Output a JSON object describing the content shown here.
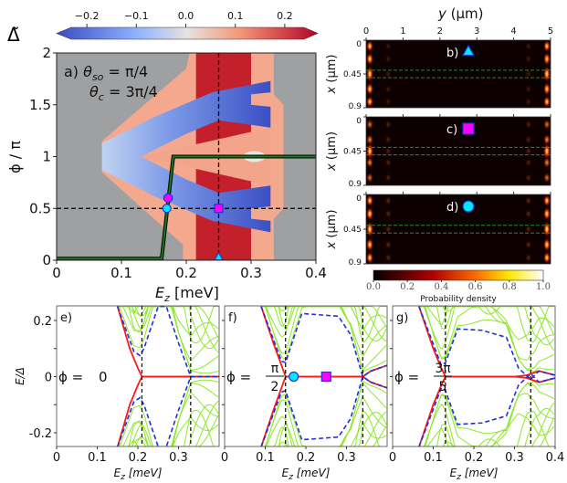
{
  "chart_data": [
    {
      "panel": "a",
      "type": "heatmap",
      "colorbar": {
        "label": "Δ̃",
        "range": [
          -0.25,
          0.25
        ],
        "tick_values": [
          -0.2,
          -0.1,
          0.0,
          0.1,
          0.2
        ],
        "tick_labels": [
          "−0.2",
          "−0.1",
          "0.0",
          "0.1",
          "0.2"
        ]
      },
      "annotation": {
        "prefix": "a) ",
        "sym1": "θ",
        "sub1": "so",
        "val1": " = π/4",
        "sym2": "θ",
        "sub2": "c",
        "val2": " = 3π/4"
      },
      "xlabel": {
        "main": "E",
        "sub": "z",
        "rest": " [meV]"
      },
      "ylabel": "ϕ / π",
      "xlim": [
        0,
        0.4
      ],
      "ylim": [
        0,
        2
      ],
      "xticks": [
        0,
        0.1,
        0.2,
        0.3,
        0.4
      ],
      "xtick_labels": [
        "0",
        "0.1",
        "0.2",
        "0.3",
        "0.4"
      ],
      "yticks": [
        0,
        0.5,
        1,
        1.5,
        2
      ],
      "ytick_labels": [
        "0",
        "0.5",
        "1",
        "1.5",
        "2"
      ],
      "regions": {
        "background_color": "#9fa0a2",
        "salmon": [
          [
            0.195,
            0
          ],
          [
            0.335,
            0
          ],
          [
            0.335,
            0.4
          ],
          [
            0.35,
            0.5
          ],
          [
            0.35,
            1.5
          ],
          [
            0.335,
            1.6
          ],
          [
            0.335,
            2
          ],
          [
            0.205,
            2
          ],
          [
            0.2,
            1.85
          ],
          [
            0.07,
            1.15
          ],
          [
            0.07,
            0.85
          ],
          [
            0.195,
            0.15
          ]
        ],
        "dark_red": [
          [
            0.215,
            0
          ],
          [
            0.3,
            0
          ],
          [
            0.3,
            2
          ],
          [
            0.215,
            2
          ]
        ],
        "blue_upper": [
          [
            0.07,
            1.0
          ],
          [
            0.07,
            1.13
          ],
          [
            0.15,
            1.38
          ],
          [
            0.24,
            1.62
          ],
          [
            0.33,
            1.73
          ],
          [
            0.33,
            1.62
          ],
          [
            0.3,
            1.6
          ],
          [
            0.3,
            1.5
          ],
          [
            0.33,
            1.48
          ],
          [
            0.33,
            1.28
          ],
          [
            0.25,
            1.35
          ],
          [
            0.2,
            1.22
          ],
          [
            0.13,
            1.0
          ]
        ],
        "white_spot": [
          0.305,
          1.0
        ]
      },
      "phase_boundary": [
        [
          0,
          0.015
        ],
        [
          0.162,
          0.015
        ],
        [
          0.18,
          1.0
        ],
        [
          0.4,
          1.0
        ]
      ],
      "dashed_lines": {
        "x": 0.25,
        "y": 0.5
      },
      "markers": [
        {
          "shape": "circle",
          "x": 0.17,
          "y": 0.5,
          "color": "#00e8ff"
        },
        {
          "shape": "cross",
          "x": 0.172,
          "y": 0.6,
          "color": "#ff00ff"
        },
        {
          "shape": "square",
          "x": 0.25,
          "y": 0.5,
          "color": "#ff00ff"
        },
        {
          "shape": "triangle",
          "x": 0.25,
          "y": 0.0,
          "color": "#00e8ff"
        }
      ]
    },
    {
      "panel": "b-d",
      "type": "heatmap",
      "top_label": {
        "main": "y",
        "rest": " (μm)"
      },
      "ylabel": {
        "main": "x",
        "rest": " (μm)"
      },
      "xlim": [
        0,
        5
      ],
      "xticks": [
        0,
        1,
        2,
        3,
        4,
        5
      ],
      "xtick_labels": [
        "0",
        "1",
        "2",
        "3",
        "4",
        "5"
      ],
      "ylim": [
        0,
        0.9
      ],
      "yticks": [
        0,
        0.45,
        0.9
      ],
      "ytick_labels": [
        "0",
        "0.45",
        "0.9"
      ],
      "wire_band": [
        0.4,
        0.5
      ],
      "colorbar": {
        "label": "Probability density",
        "range": [
          0,
          1
        ],
        "tick_labels": [
          "0.0",
          "0.2",
          "0.4",
          "0.6",
          "0.8",
          "1.0"
        ]
      },
      "panels": [
        {
          "label": "b)",
          "marker": "triangle",
          "marker_color": "#00e8ff",
          "blobs_x": [
            0.08,
            0.25,
            0.45,
            0.65,
            0.82
          ],
          "intensity": [
            0.6,
            0.6,
            1.0,
            0.6,
            0.6
          ],
          "inner": 0.15
        },
        {
          "label": "c)",
          "marker": "square",
          "marker_color": "#ff00ff",
          "blobs_x": [
            0.1,
            0.3,
            0.45,
            0.6,
            0.8
          ],
          "intensity": [
            0.25,
            0.35,
            1.0,
            0.35,
            0.25
          ],
          "inner": 0.2
        },
        {
          "label": "d)",
          "marker": "circle",
          "marker_color": "#00e8ff",
          "blobs_x": [
            0.08,
            0.25,
            0.45,
            0.65,
            0.82
          ],
          "intensity": [
            0.6,
            0.65,
            1.0,
            0.65,
            0.6
          ],
          "inner": 0.22
        }
      ]
    },
    {
      "panel": "e",
      "type": "line",
      "label": "e)",
      "ylabel": "E/Δ",
      "xlabel": {
        "main": "E",
        "sub": "z",
        "rest": " [meV]"
      },
      "xlim": [
        0,
        0.4
      ],
      "ylim": [
        -0.25,
        0.25
      ],
      "xtick_labels": [
        "0",
        "0.1",
        "0.2",
        "0.3"
      ],
      "xticks": [
        0,
        0.1,
        0.2,
        0.3
      ],
      "yticks": [
        -0.2,
        0,
        0.2
      ],
      "ytick_labels": [
        "-0.2",
        "0",
        "0.2"
      ],
      "phi": {
        "lhs": "ϕ = ",
        "num": "0",
        "den": ""
      },
      "vlines": [
        0.21,
        0.33
      ],
      "red": [
        [
          0.15,
          0.25
        ],
        [
          0.18,
          0.1
        ],
        [
          0.2,
          0.03
        ],
        [
          0.21,
          0
        ],
        [
          0.4,
          0
        ]
      ],
      "blue": [
        [
          0.15,
          0.26
        ],
        [
          0.19,
          0.09
        ],
        [
          0.205,
          0.075
        ],
        [
          0.215,
          0.1
        ],
        [
          0.25,
          0.27
        ],
        [
          0.27,
          0.27
        ],
        [
          0.3,
          0.12
        ],
        [
          0.33,
          0
        ],
        [
          0.4,
          0
        ]
      ],
      "markers": []
    },
    {
      "panel": "f",
      "type": "line",
      "label": "f)",
      "xlabel": {
        "main": "E",
        "sub": "z",
        "rest": " [meV]"
      },
      "xlim": [
        0,
        0.4
      ],
      "ylim": [
        -0.25,
        0.25
      ],
      "xtick_labels": [
        "0",
        "0.1",
        "0.2",
        "0.3"
      ],
      "xticks": [
        0,
        0.1,
        0.2,
        0.3
      ],
      "phi": {
        "lhs": "ϕ = ",
        "num": "π",
        "den": "2"
      },
      "vlines": [
        0.15,
        0.34
      ],
      "red": [
        [
          0.09,
          0.25
        ],
        [
          0.12,
          0.12
        ],
        [
          0.14,
          0.04
        ],
        [
          0.15,
          0
        ],
        [
          0.34,
          0
        ],
        [
          0.36,
          0.02
        ],
        [
          0.4,
          0.04
        ]
      ],
      "blue": [
        [
          0.09,
          0.26
        ],
        [
          0.14,
          0.055
        ],
        [
          0.15,
          0.05
        ],
        [
          0.19,
          0.225
        ],
        [
          0.28,
          0.215
        ],
        [
          0.31,
          0.15
        ],
        [
          0.34,
          0
        ],
        [
          0.36,
          -0.02
        ],
        [
          0.4,
          -0.04
        ]
      ],
      "markers": [
        {
          "shape": "circle",
          "x": 0.17,
          "y": 0,
          "color": "#00e8ff"
        },
        {
          "shape": "square",
          "x": 0.25,
          "y": 0,
          "color": "#ff00ff"
        }
      ]
    },
    {
      "panel": "g",
      "type": "line",
      "label": "g)",
      "xlabel": {
        "main": "E",
        "sub": "z",
        "rest": " [meV]"
      },
      "xlim": [
        0,
        0.4
      ],
      "ylim": [
        -0.25,
        0.25
      ],
      "xtick_labels": [
        "0",
        "0.1",
        "0.2",
        "0.3",
        "0.4"
      ],
      "xticks": [
        0,
        0.1,
        0.2,
        0.3,
        0.4
      ],
      "phi": {
        "lhs": "ϕ = ",
        "num": "3π",
        "den": "5"
      },
      "vlines": [
        0.13,
        0.34
      ],
      "red": [
        [
          0.065,
          0.25
        ],
        [
          0.1,
          0.1
        ],
        [
          0.12,
          0.03
        ],
        [
          0.13,
          0
        ],
        [
          0.3,
          0
        ],
        [
          0.33,
          -0.005
        ],
        [
          0.36,
          -0.02
        ],
        [
          0.4,
          -0.005
        ]
      ],
      "blue": [
        [
          0.065,
          0.26
        ],
        [
          0.12,
          0.04
        ],
        [
          0.13,
          0.05
        ],
        [
          0.16,
          0.17
        ],
        [
          0.22,
          0.165
        ],
        [
          0.28,
          0.14
        ],
        [
          0.31,
          0.03
        ],
        [
          0.34,
          -0.01
        ],
        [
          0.36,
          0.02
        ],
        [
          0.4,
          0.005
        ]
      ],
      "markers": []
    }
  ],
  "bulk_band_offsets": [
    0.03,
    0.06,
    0.09,
    0.12,
    0.16,
    0.2,
    0.25,
    0.3
  ],
  "colors": {
    "green": "#8ee82a",
    "red": "#ff1a1a",
    "blue": "#1f2fe0",
    "phase_line": "#1a7a1a"
  }
}
